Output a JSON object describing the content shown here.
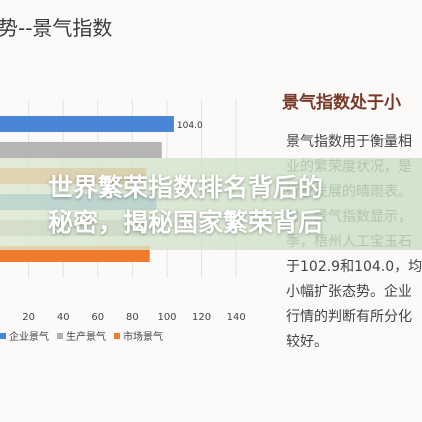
{
  "page": {
    "top_title": "势--景气指数",
    "right_heading": "景气指数处于小",
    "right_text": "景气指数用于衡量相\n业的繁荣度状况，是\n行业发展的晴雨表。\n时，景气指数显示，\n季，梧州人工宝玉石\n于102.9和104.0，均\n小幅扩张态势。企业\n行情的判断有所分化\n较好。",
    "overlay_title": "世界繁荣指数排名背后的\n秘密，揭秘国家繁荣背后"
  },
  "chart_data": {
    "type": "bar",
    "orientation": "horizontal",
    "series": [
      {
        "name": "企业景气",
        "color": "#4a86d8"
      },
      {
        "name": "生产景气",
        "color": "#b0b0b0"
      },
      {
        "name": "市场景气",
        "color": "#f07b2a"
      }
    ],
    "bars": [
      {
        "value": 104.0,
        "color": "#4a86d8",
        "label": "104.0"
      },
      {
        "value": 97.0,
        "color": "#b5b5b5",
        "label": ""
      },
      {
        "value": 88.0,
        "color": "#f07b2a",
        "label": ""
      },
      {
        "value": 94.0,
        "color": "#4a86d8",
        "label": ""
      },
      {
        "value": 92.0,
        "color": "#b5b5b5",
        "label": ""
      },
      {
        "value": 90.0,
        "color": "#f07b2a",
        "label": ""
      }
    ],
    "xlim": [
      0,
      140
    ],
    "x_ticks": [
      "20",
      "40",
      "60",
      "80",
      "100",
      "120",
      "140"
    ],
    "legend_labels": [
      "企业景气",
      "生产景气",
      "市场景气"
    ]
  }
}
